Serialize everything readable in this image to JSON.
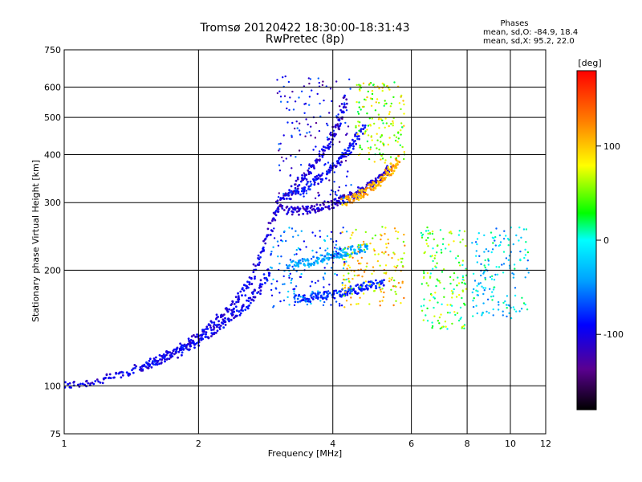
{
  "chart_data": {
    "type": "scatter",
    "title": "Tromsø 20120422 18:30:00-18:31:43",
    "subtitle": "RwPretec (8p)",
    "xlabel": "Frequency [MHz]",
    "ylabel": "Stationary phase Virtual Height [km]",
    "x_scale": "log",
    "y_scale": "log",
    "xlim": [
      1,
      12
    ],
    "ylim": [
      75,
      750
    ],
    "x_ticks": [
      "1",
      "2",
      "4",
      "6",
      "8",
      "10",
      "12"
    ],
    "y_ticks": [
      "75",
      "100",
      "200",
      "300",
      "400",
      "500",
      "600",
      "750"
    ],
    "grid": true,
    "phases_box": {
      "header": "Phases",
      "line1": "mean, sd,O: -84.9, 18.4",
      "line2": "mean, sd,X:  95.2, 22.0"
    },
    "colorbar": {
      "unit": "[deg]",
      "range": [
        -180,
        180
      ],
      "ticks": [
        "100",
        "0",
        "-100"
      ]
    },
    "traces": [
      {
        "x": [
          1.0,
          1.2,
          1.4,
          1.6,
          1.8,
          2.0,
          2.2,
          2.4,
          2.6,
          2.8,
          3.0
        ],
        "y": [
          100,
          103,
          109,
          116,
          125,
          135,
          148,
          163,
          185,
          230,
          290
        ],
        "phase": -100
      },
      {
        "x": [
          1.5,
          1.7,
          1.9,
          2.1,
          2.3,
          2.5,
          2.7,
          2.9
        ],
        "y": [
          112,
          118,
          126,
          135,
          146,
          158,
          175,
          200
        ],
        "phase": -95
      },
      {
        "x": [
          3.0,
          3.3,
          3.6,
          3.9,
          4.2,
          4.5,
          4.8,
          5.1,
          5.4
        ],
        "y": [
          290,
          285,
          288,
          295,
          305,
          315,
          330,
          350,
          370
        ],
        "phase": -110
      },
      {
        "x": [
          3.0,
          3.3,
          3.6,
          3.9,
          4.1,
          4.3
        ],
        "y": [
          300,
          330,
          370,
          420,
          480,
          560
        ],
        "phase": -105
      },
      {
        "x": [
          3.2,
          3.5,
          3.8,
          4.1,
          4.4,
          4.7
        ],
        "y": [
          310,
          330,
          350,
          380,
          420,
          470
        ],
        "phase": -90
      },
      {
        "x": [
          4.2,
          4.5,
          4.8,
          5.1,
          5.4,
          5.6
        ],
        "y": [
          300,
          310,
          325,
          340,
          365,
          390
        ],
        "phase": 110
      },
      {
        "x": [
          3.3,
          3.6,
          3.9,
          4.2,
          4.5,
          4.8,
          5.2
        ],
        "y": [
          168,
          170,
          172,
          175,
          178,
          182,
          186
        ],
        "phase": -80
      },
      {
        "x": [
          3.2,
          3.5,
          3.8,
          4.1,
          4.4,
          4.8
        ],
        "y": [
          205,
          210,
          215,
          220,
          225,
          230
        ],
        "phase": -40
      }
    ],
    "scatter_regions": [
      {
        "x": [
          2.9,
          4.3
        ],
        "y": [
          160,
          260
        ],
        "phase": -60
      },
      {
        "x": [
          3.0,
          4.4
        ],
        "y": [
          300,
          650
        ],
        "phase": -100
      },
      {
        "x": [
          4.2,
          5.8
        ],
        "y": [
          160,
          260
        ],
        "phase": 90
      },
      {
        "x": [
          4.5,
          5.8
        ],
        "y": [
          380,
          620
        ],
        "phase": 60
      },
      {
        "x": [
          6.3,
          8.0
        ],
        "y": [
          140,
          260
        ],
        "phase": 40
      },
      {
        "x": [
          8.2,
          11.0
        ],
        "y": [
          150,
          260
        ],
        "phase": -20
      }
    ]
  }
}
